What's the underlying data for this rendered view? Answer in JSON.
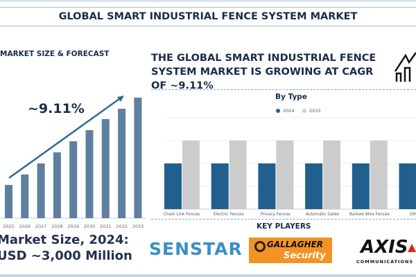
{
  "title": "GLOBAL SMART INDUSTRIAL FENCE SYSTEM MARKET",
  "left": {
    "heading": "MARKET SIZE & FORECAST",
    "cagr": "~9.11%",
    "market_size_line1": "Market Size, 2024:",
    "market_size_line2": "USD ~3,000 Million"
  },
  "right": {
    "headline": "THE GLOBAL SMART INDUSTRIAL FENCE SYSTEM MARKET IS GROWING AT CAGR OF ~9.11%",
    "icon": "house-chart-icon"
  },
  "key_players": {
    "heading": "KEY PLAYERS",
    "logos": [
      "SENSTAR",
      "GALLAGHER Security",
      "AXIS COMMUNICATIONS"
    ],
    "senstar": "SENSTAR",
    "gallagher_1": "GALLAGHER",
    "gallagher_2": "Security",
    "axis_1": "AXIS",
    "axis_2": "COMMUNICATIONS"
  },
  "chart_data": [
    {
      "type": "bar",
      "title": "",
      "categories": [
        "2025",
        "2026",
        "2027",
        "2028",
        "2029",
        "2030",
        "2031",
        "2032",
        "2033"
      ],
      "values": [
        48,
        63,
        79,
        95,
        111,
        127,
        143,
        158,
        174
      ],
      "color": "#5e7f9f",
      "annotation": "~9.11%",
      "grid": false
    },
    {
      "type": "bar",
      "title": "By Type",
      "categories": [
        "Chain Link Fences",
        "Electric Fences",
        "Privacy Fences",
        "Automatic Gates",
        "Barbed Wire Fences",
        "Others"
      ],
      "series": [
        {
          "name": "2024",
          "values": [
            2,
            2,
            2,
            2,
            2,
            2
          ],
          "color": "#215f8e"
        },
        {
          "name": "2033",
          "values": [
            3,
            3,
            3,
            3,
            3,
            3
          ],
          "color": "#cccccc"
        }
      ],
      "ylim": [
        0,
        4
      ],
      "grid": true,
      "legend": "top"
    }
  ]
}
